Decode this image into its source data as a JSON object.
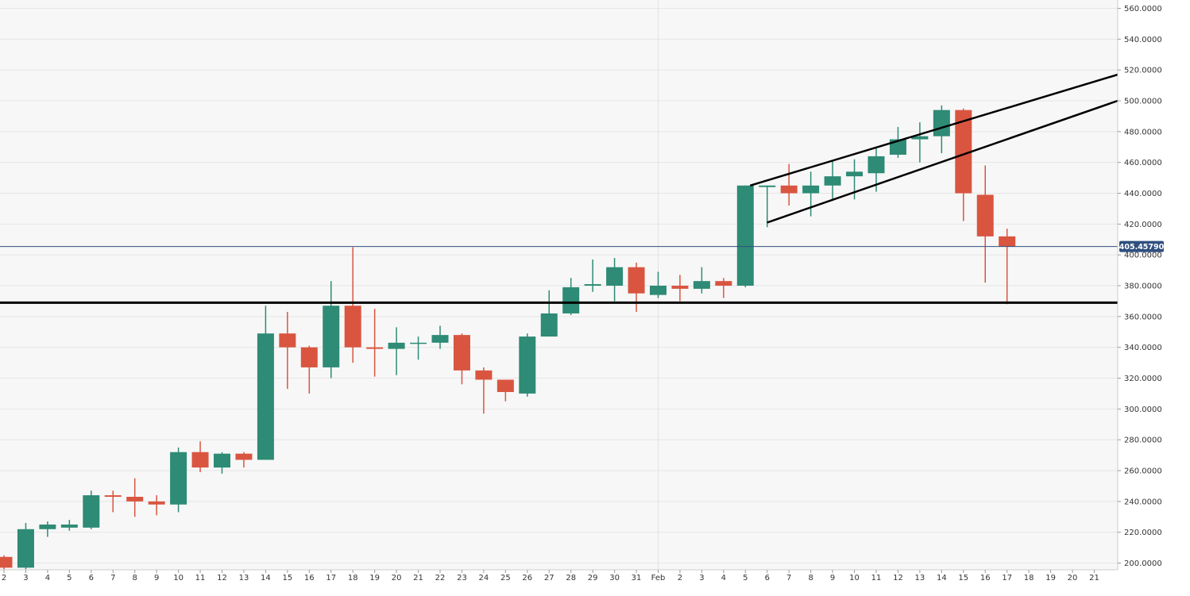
{
  "chart_data": {
    "type": "candlestick",
    "title": "",
    "xlabel": "",
    "ylabel": "",
    "ylim": [
      196,
      562
    ],
    "y_ticks": [
      "200.0000",
      "220.0000",
      "240.0000",
      "260.0000",
      "280.0000",
      "300.0000",
      "320.0000",
      "340.0000",
      "360.0000",
      "380.0000",
      "400.0000",
      "420.0000",
      "440.0000",
      "460.0000",
      "480.0000",
      "500.0000",
      "520.0000",
      "540.0000",
      "560.0000"
    ],
    "x_labels": [
      "2",
      "3",
      "4",
      "5",
      "6",
      "7",
      "8",
      "9",
      "10",
      "11",
      "12",
      "13",
      "14",
      "15",
      "16",
      "17",
      "18",
      "19",
      "20",
      "21",
      "22",
      "23",
      "24",
      "25",
      "26",
      "27",
      "28",
      "29",
      "30",
      "31",
      "Feb",
      "2",
      "3",
      "4",
      "5",
      "6",
      "7",
      "8",
      "9",
      "10",
      "11",
      "12",
      "13",
      "14",
      "15",
      "16",
      "17",
      "18",
      "19",
      "20",
      "21"
    ],
    "candles": [
      {
        "x": "2",
        "o": 204,
        "h": 205,
        "l": 196,
        "c": 197
      },
      {
        "x": "3",
        "o": 197,
        "h": 226,
        "l": 196,
        "c": 222
      },
      {
        "x": "4",
        "o": 222,
        "h": 227,
        "l": 217,
        "c": 225
      },
      {
        "x": "5",
        "o": 223,
        "h": 228,
        "l": 221,
        "c": 225
      },
      {
        "x": "6",
        "o": 223,
        "h": 247,
        "l": 222,
        "c": 244
      },
      {
        "x": "7",
        "o": 244,
        "h": 247,
        "l": 233,
        "c": 243
      },
      {
        "x": "8",
        "o": 243,
        "h": 255,
        "l": 230,
        "c": 240
      },
      {
        "x": "9",
        "o": 240,
        "h": 244,
        "l": 231,
        "c": 238
      },
      {
        "x": "10",
        "o": 238,
        "h": 275,
        "l": 233,
        "c": 272
      },
      {
        "x": "11",
        "o": 272,
        "h": 279,
        "l": 259,
        "c": 262
      },
      {
        "x": "12",
        "o": 262,
        "h": 272,
        "l": 258,
        "c": 271
      },
      {
        "x": "13",
        "o": 271,
        "h": 272,
        "l": 262,
        "c": 267
      },
      {
        "x": "14",
        "o": 267,
        "h": 367,
        "l": 267,
        "c": 349
      },
      {
        "x": "15",
        "o": 349,
        "h": 363,
        "l": 313,
        "c": 340
      },
      {
        "x": "16",
        "o": 340,
        "h": 341,
        "l": 310,
        "c": 327
      },
      {
        "x": "17",
        "o": 327,
        "h": 383,
        "l": 320,
        "c": 367
      },
      {
        "x": "18",
        "o": 367,
        "h": 405,
        "l": 330,
        "c": 340
      },
      {
        "x": "19",
        "o": 340,
        "h": 365,
        "l": 321,
        "c": 339
      },
      {
        "x": "20",
        "o": 339,
        "h": 353,
        "l": 322,
        "c": 343
      },
      {
        "x": "21",
        "o": 343,
        "h": 347,
        "l": 332,
        "c": 343
      },
      {
        "x": "22",
        "o": 343,
        "h": 354,
        "l": 339,
        "c": 348
      },
      {
        "x": "23",
        "o": 348,
        "h": 349,
        "l": 316,
        "c": 325
      },
      {
        "x": "24",
        "o": 325,
        "h": 327,
        "l": 297,
        "c": 319
      },
      {
        "x": "25",
        "o": 319,
        "h": 319,
        "l": 305,
        "c": 311
      },
      {
        "x": "26",
        "o": 310,
        "h": 349,
        "l": 308,
        "c": 347
      },
      {
        "x": "27",
        "o": 347,
        "h": 377,
        "l": 347,
        "c": 362
      },
      {
        "x": "28",
        "o": 362,
        "h": 385,
        "l": 361,
        "c": 379
      },
      {
        "x": "29",
        "o": 380,
        "h": 397,
        "l": 376,
        "c": 381
      },
      {
        "x": "30",
        "o": 380,
        "h": 398,
        "l": 370,
        "c": 392
      },
      {
        "x": "31",
        "o": 392,
        "h": 395,
        "l": 363,
        "c": 375
      },
      {
        "x": "Feb",
        "o": 374,
        "h": 389,
        "l": 372,
        "c": 380
      },
      {
        "x": "2",
        "o": 380,
        "h": 387,
        "l": 370,
        "c": 378
      },
      {
        "x": "3",
        "o": 378,
        "h": 392,
        "l": 375,
        "c": 383
      },
      {
        "x": "4",
        "o": 383,
        "h": 385,
        "l": 372,
        "c": 380
      },
      {
        "x": "5",
        "o": 380,
        "h": 445,
        "l": 379,
        "c": 445
      },
      {
        "x": "6",
        "o": 444,
        "h": 445,
        "l": 418,
        "c": 445
      },
      {
        "x": "7",
        "o": 445,
        "h": 459,
        "l": 432,
        "c": 440
      },
      {
        "x": "8",
        "o": 440,
        "h": 454,
        "l": 425,
        "c": 445
      },
      {
        "x": "9",
        "o": 445,
        "h": 461,
        "l": 435,
        "c": 451
      },
      {
        "x": "10",
        "o": 451,
        "h": 462,
        "l": 436,
        "c": 454
      },
      {
        "x": "11",
        "o": 453,
        "h": 469,
        "l": 441,
        "c": 464
      },
      {
        "x": "12",
        "o": 465,
        "h": 483,
        "l": 463,
        "c": 475
      },
      {
        "x": "13",
        "o": 475,
        "h": 486,
        "l": 460,
        "c": 477
      },
      {
        "x": "14",
        "o": 477,
        "h": 497,
        "l": 466,
        "c": 494
      },
      {
        "x": "15",
        "o": 494,
        "h": 495,
        "l": 422,
        "c": 440
      },
      {
        "x": "16",
        "o": 439,
        "h": 458,
        "l": 382,
        "c": 412
      },
      {
        "x": "17",
        "o": 412,
        "h": 417,
        "l": 368,
        "c": 405.4579
      }
    ],
    "last_price": "405.45790",
    "horizontal_levels": [
      405.4579,
      369
    ],
    "trendlines": [
      {
        "from": {
          "x": "5",
          "y": 445
        },
        "to": {
          "x": "21+",
          "y": 517
        }
      },
      {
        "from": {
          "x": "6",
          "y": 421
        },
        "to": {
          "x": "21+",
          "y": 500
        }
      }
    ],
    "colors": {
      "up": "#2e8b75",
      "down": "#d95540",
      "grid": "#e6e6e6",
      "background": "#f7f7f7",
      "price_line": "#2f4f7f",
      "price_badge": "#2f4f7f",
      "trend": "#000000"
    }
  }
}
